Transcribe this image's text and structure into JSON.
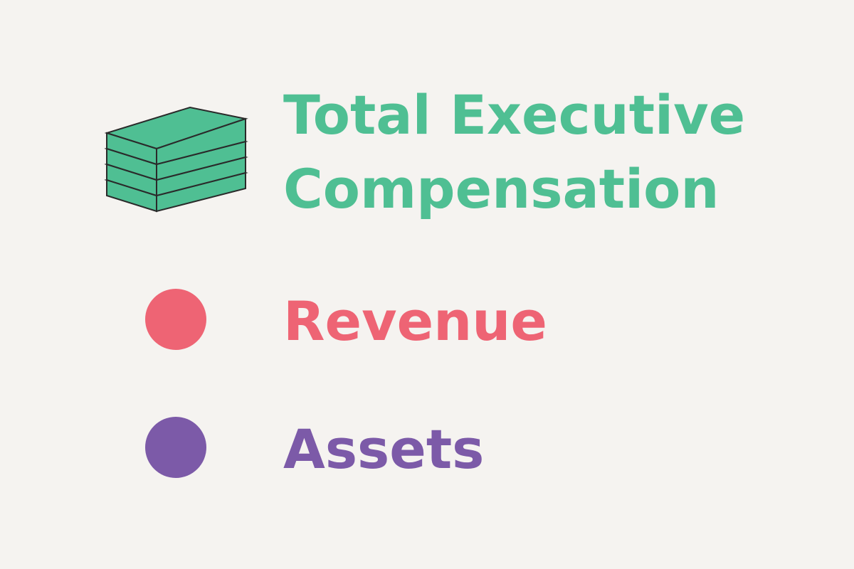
{
  "chart_data": {
    "type": "legend",
    "legend": [
      {
        "name": "Total Executive Compensation",
        "color": "#4fbf93",
        "marker": "money-stack-icon"
      },
      {
        "name": "Revenue",
        "color": "#ee6474",
        "marker": "circle"
      },
      {
        "name": "Assets",
        "color": "#7c5aa8",
        "marker": "circle"
      }
    ]
  }
}
